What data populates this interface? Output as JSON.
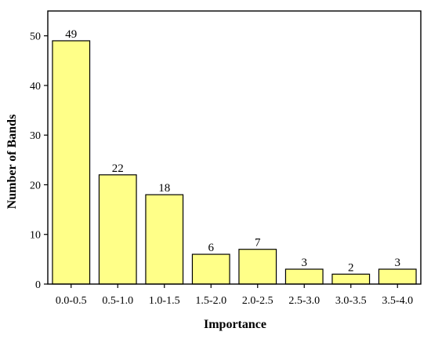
{
  "chart_data": {
    "type": "bar",
    "title": "",
    "xlabel": "Importance",
    "ylabel": "Number of Bands",
    "categories": [
      "0.0-0.5",
      "0.5-1.0",
      "1.0-1.5",
      "1.5-2.0",
      "2.0-2.5",
      "2.5-3.0",
      "3.0-3.5",
      "3.5-4.0"
    ],
    "values": [
      49,
      22,
      18,
      6,
      7,
      3,
      2,
      3
    ],
    "ylim": [
      0,
      55
    ],
    "yticks": [
      0,
      10,
      20,
      30,
      40,
      50
    ],
    "grid": false,
    "legend": "none",
    "bar_color": "#ffff88",
    "bar_edge_color": "#000000",
    "data_labels": true
  }
}
